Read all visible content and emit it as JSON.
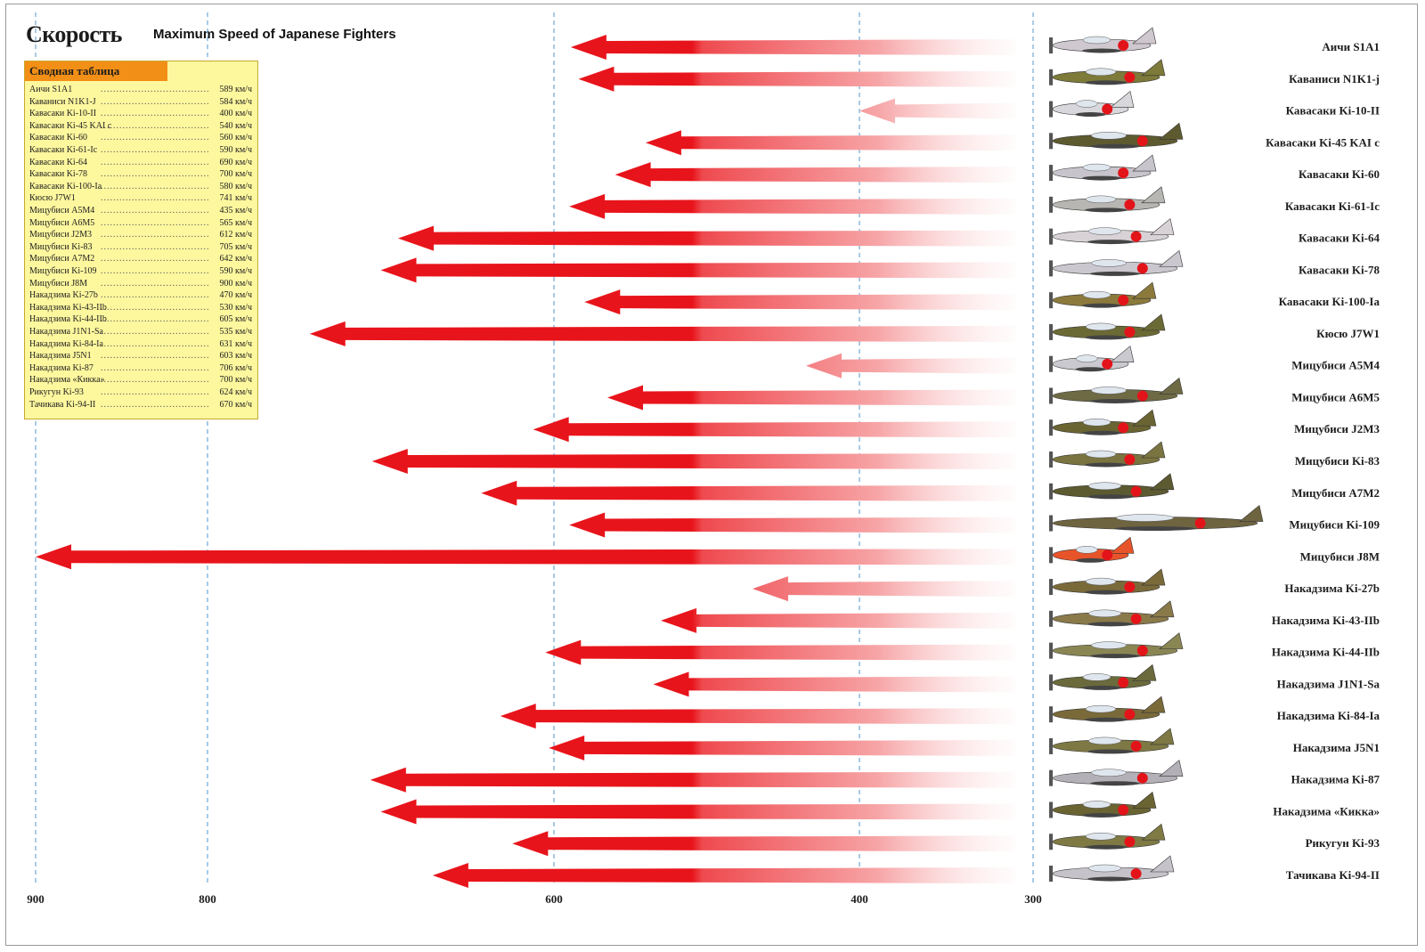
{
  "header": {
    "title_ru": "Скорость",
    "title_en": "Maximum Speed of Japanese Fighters"
  },
  "summary_table": {
    "title": "Сводная таблица",
    "rows": [
      {
        "name": "Аичи S1A1",
        "value": "589 км/ч"
      },
      {
        "name": "Каваниси N1K1-J",
        "value": "584 км/ч"
      },
      {
        "name": "Кавасаки Ki-10-II",
        "value": "400 км/ч"
      },
      {
        "name": "Кавасаки Ki-45 KAI c",
        "value": "540 км/ч"
      },
      {
        "name": "Кавасаки Ki-60",
        "value": "560 км/ч"
      },
      {
        "name": "Кавасаки Ki-61-Ic",
        "value": "590 км/ч"
      },
      {
        "name": "Кавасаки Ki-64",
        "value": "690 км/ч"
      },
      {
        "name": "Кавасаки Ki-78",
        "value": "700 км/ч"
      },
      {
        "name": "Кавасаки Ki-100-Ia",
        "value": "580 км/ч"
      },
      {
        "name": "Кюсю J7W1",
        "value": "741 км/ч"
      },
      {
        "name": "Мицубиси A5M4",
        "value": "435 км/ч"
      },
      {
        "name": "Мицубиси A6M5",
        "value": "565 км/ч"
      },
      {
        "name": "Мицубиси J2M3",
        "value": "612 км/ч"
      },
      {
        "name": "Мицубиси Ki-83",
        "value": "705 км/ч"
      },
      {
        "name": "Мицубиси A7M2",
        "value": "642 км/ч"
      },
      {
        "name": "Мицубиси Ki-109",
        "value": "590 км/ч"
      },
      {
        "name": "Мицубиси J8M",
        "value": "900 км/ч"
      },
      {
        "name": "Накадзима Ki-27b",
        "value": "470 км/ч"
      },
      {
        "name": "Накадзима Ki-43-IIb",
        "value": "530 км/ч"
      },
      {
        "name": "Накадзима Ki-44-IIb",
        "value": "605 км/ч"
      },
      {
        "name": "Накадзима J1N1-Sa",
        "value": "535 км/ч"
      },
      {
        "name": "Накадзима Ki-84-Ia",
        "value": "631 км/ч"
      },
      {
        "name": "Накадзима J5N1",
        "value": "603 км/ч"
      },
      {
        "name": "Накадзима Ki-87",
        "value": "706 км/ч"
      },
      {
        "name": "Накадзима «Кикка»",
        "value": "700 км/ч"
      },
      {
        "name": "Рикугун Ki-93",
        "value": "624 км/ч"
      },
      {
        "name": "Тачикава Ki-94-II",
        "value": "670 км/ч"
      }
    ]
  },
  "chart_data": {
    "type": "bar",
    "orientation": "horizontal",
    "x_direction": "reversed",
    "xlim": [
      900,
      300
    ],
    "x_ticks": [
      900,
      800,
      600,
      400,
      300
    ],
    "grid": "vertical dashed lines at ticks",
    "categories": [
      "Аичи S1A1",
      "Каваниси N1K1-j",
      "Кавасаки Ki-10-II",
      "Кавасаки Ki-45 KAI c",
      "Кавасаки Ki-60",
      "Кавасаки Ki-61-Ic",
      "Кавасаки Ki-64",
      "Кавасаки Ki-78",
      "Кавасаки Ki-100-Ia",
      "Кюсю J7W1",
      "Мицубиси A5M4",
      "Мицубиси A6M5",
      "Мицубиси J2M3",
      "Мицубиси Ki-83",
      "Мицубиси A7M2",
      "Мицубиси Ki-109",
      "Мицубиси J8M",
      "Накадзима Ki-27b",
      "Накадзима Ki-43-IIb",
      "Накадзима Ki-44-IIb",
      "Накадзима J1N1-Sa",
      "Накадзима Ki-84-Ia",
      "Накадзима J5N1",
      "Накадзима Ki-87",
      "Накадзима «Кикка»",
      "Рикугун Ki-93",
      "Тачикава Ki-94-II"
    ],
    "values": [
      589,
      584,
      400,
      540,
      560,
      590,
      690,
      700,
      580,
      741,
      435,
      565,
      612,
      705,
      642,
      590,
      900,
      470,
      530,
      605,
      535,
      631,
      603,
      706,
      700,
      624,
      670
    ],
    "colors": {
      "arrow": "#e8141b",
      "summary_fill": "#fdf79e",
      "summary_header": "#f28f17",
      "grid": "#6fa8d6"
    },
    "plane_colors": [
      "#cfc8cf",
      "#7d7a3a",
      "#d8d8dc",
      "#5e5a30",
      "#c8c4cc",
      "#b8b6b2",
      "#d8d2d6",
      "#cbc7cf",
      "#8c7a3c",
      "#6c6a34",
      "#c9c9cf",
      "#6e6a44",
      "#6a6432",
      "#7a7440",
      "#5c5a30",
      "#6f6440",
      "#e8542a",
      "#7a6a3a",
      "#8a7a4a",
      "#8a8654",
      "#6a6a3c",
      "#7a6a3a",
      "#7e7844",
      "#b4b0b8",
      "#6a6432",
      "#7f7a44",
      "#c6c2ca"
    ]
  }
}
